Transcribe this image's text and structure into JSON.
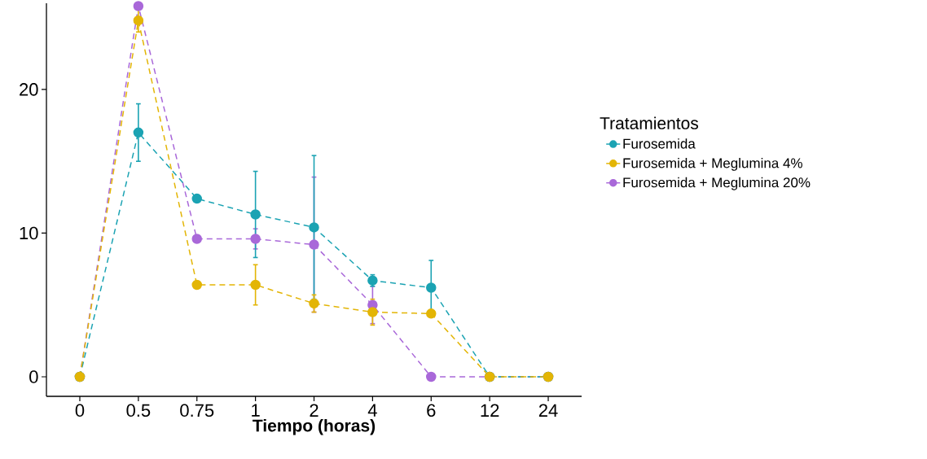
{
  "chart_data": {
    "type": "line",
    "xlabel": "Tiempo (horas)",
    "legend_title": "Tratamientos",
    "categories": [
      "0",
      "0.5",
      "0.75",
      "1",
      "2",
      "4",
      "6",
      "12",
      "24"
    ],
    "series": [
      {
        "name": "Furosemida",
        "color": "#1ba3b3",
        "values": [
          0,
          17.0,
          12.4,
          11.3,
          10.4,
          6.7,
          6.2,
          0,
          0
        ],
        "errors": [
          null,
          2.0,
          null,
          3.0,
          5.0,
          0.4,
          1.9,
          null,
          null
        ]
      },
      {
        "name": "Furosemida + Meglumina 4%",
        "color": "#e3b505",
        "values": [
          0,
          24.8,
          6.4,
          6.4,
          5.1,
          4.5,
          4.4,
          0,
          0
        ],
        "errors": [
          null,
          0.8,
          null,
          1.4,
          0.6,
          0.9,
          null,
          null,
          null
        ]
      },
      {
        "name": "Furosemida + Meglumina 20%",
        "color": "#a968d9",
        "values": [
          0,
          25.8,
          9.6,
          9.6,
          9.2,
          5.0,
          0,
          0,
          0
        ],
        "errors": [
          null,
          null,
          null,
          0.7,
          4.7,
          1.3,
          null,
          null,
          null
        ]
      }
    ],
    "ylim": [
      -1.36,
      26
    ],
    "yticks": [
      0,
      10,
      20
    ],
    "legend": "right",
    "marker": "circle",
    "line_style": "dashed"
  }
}
